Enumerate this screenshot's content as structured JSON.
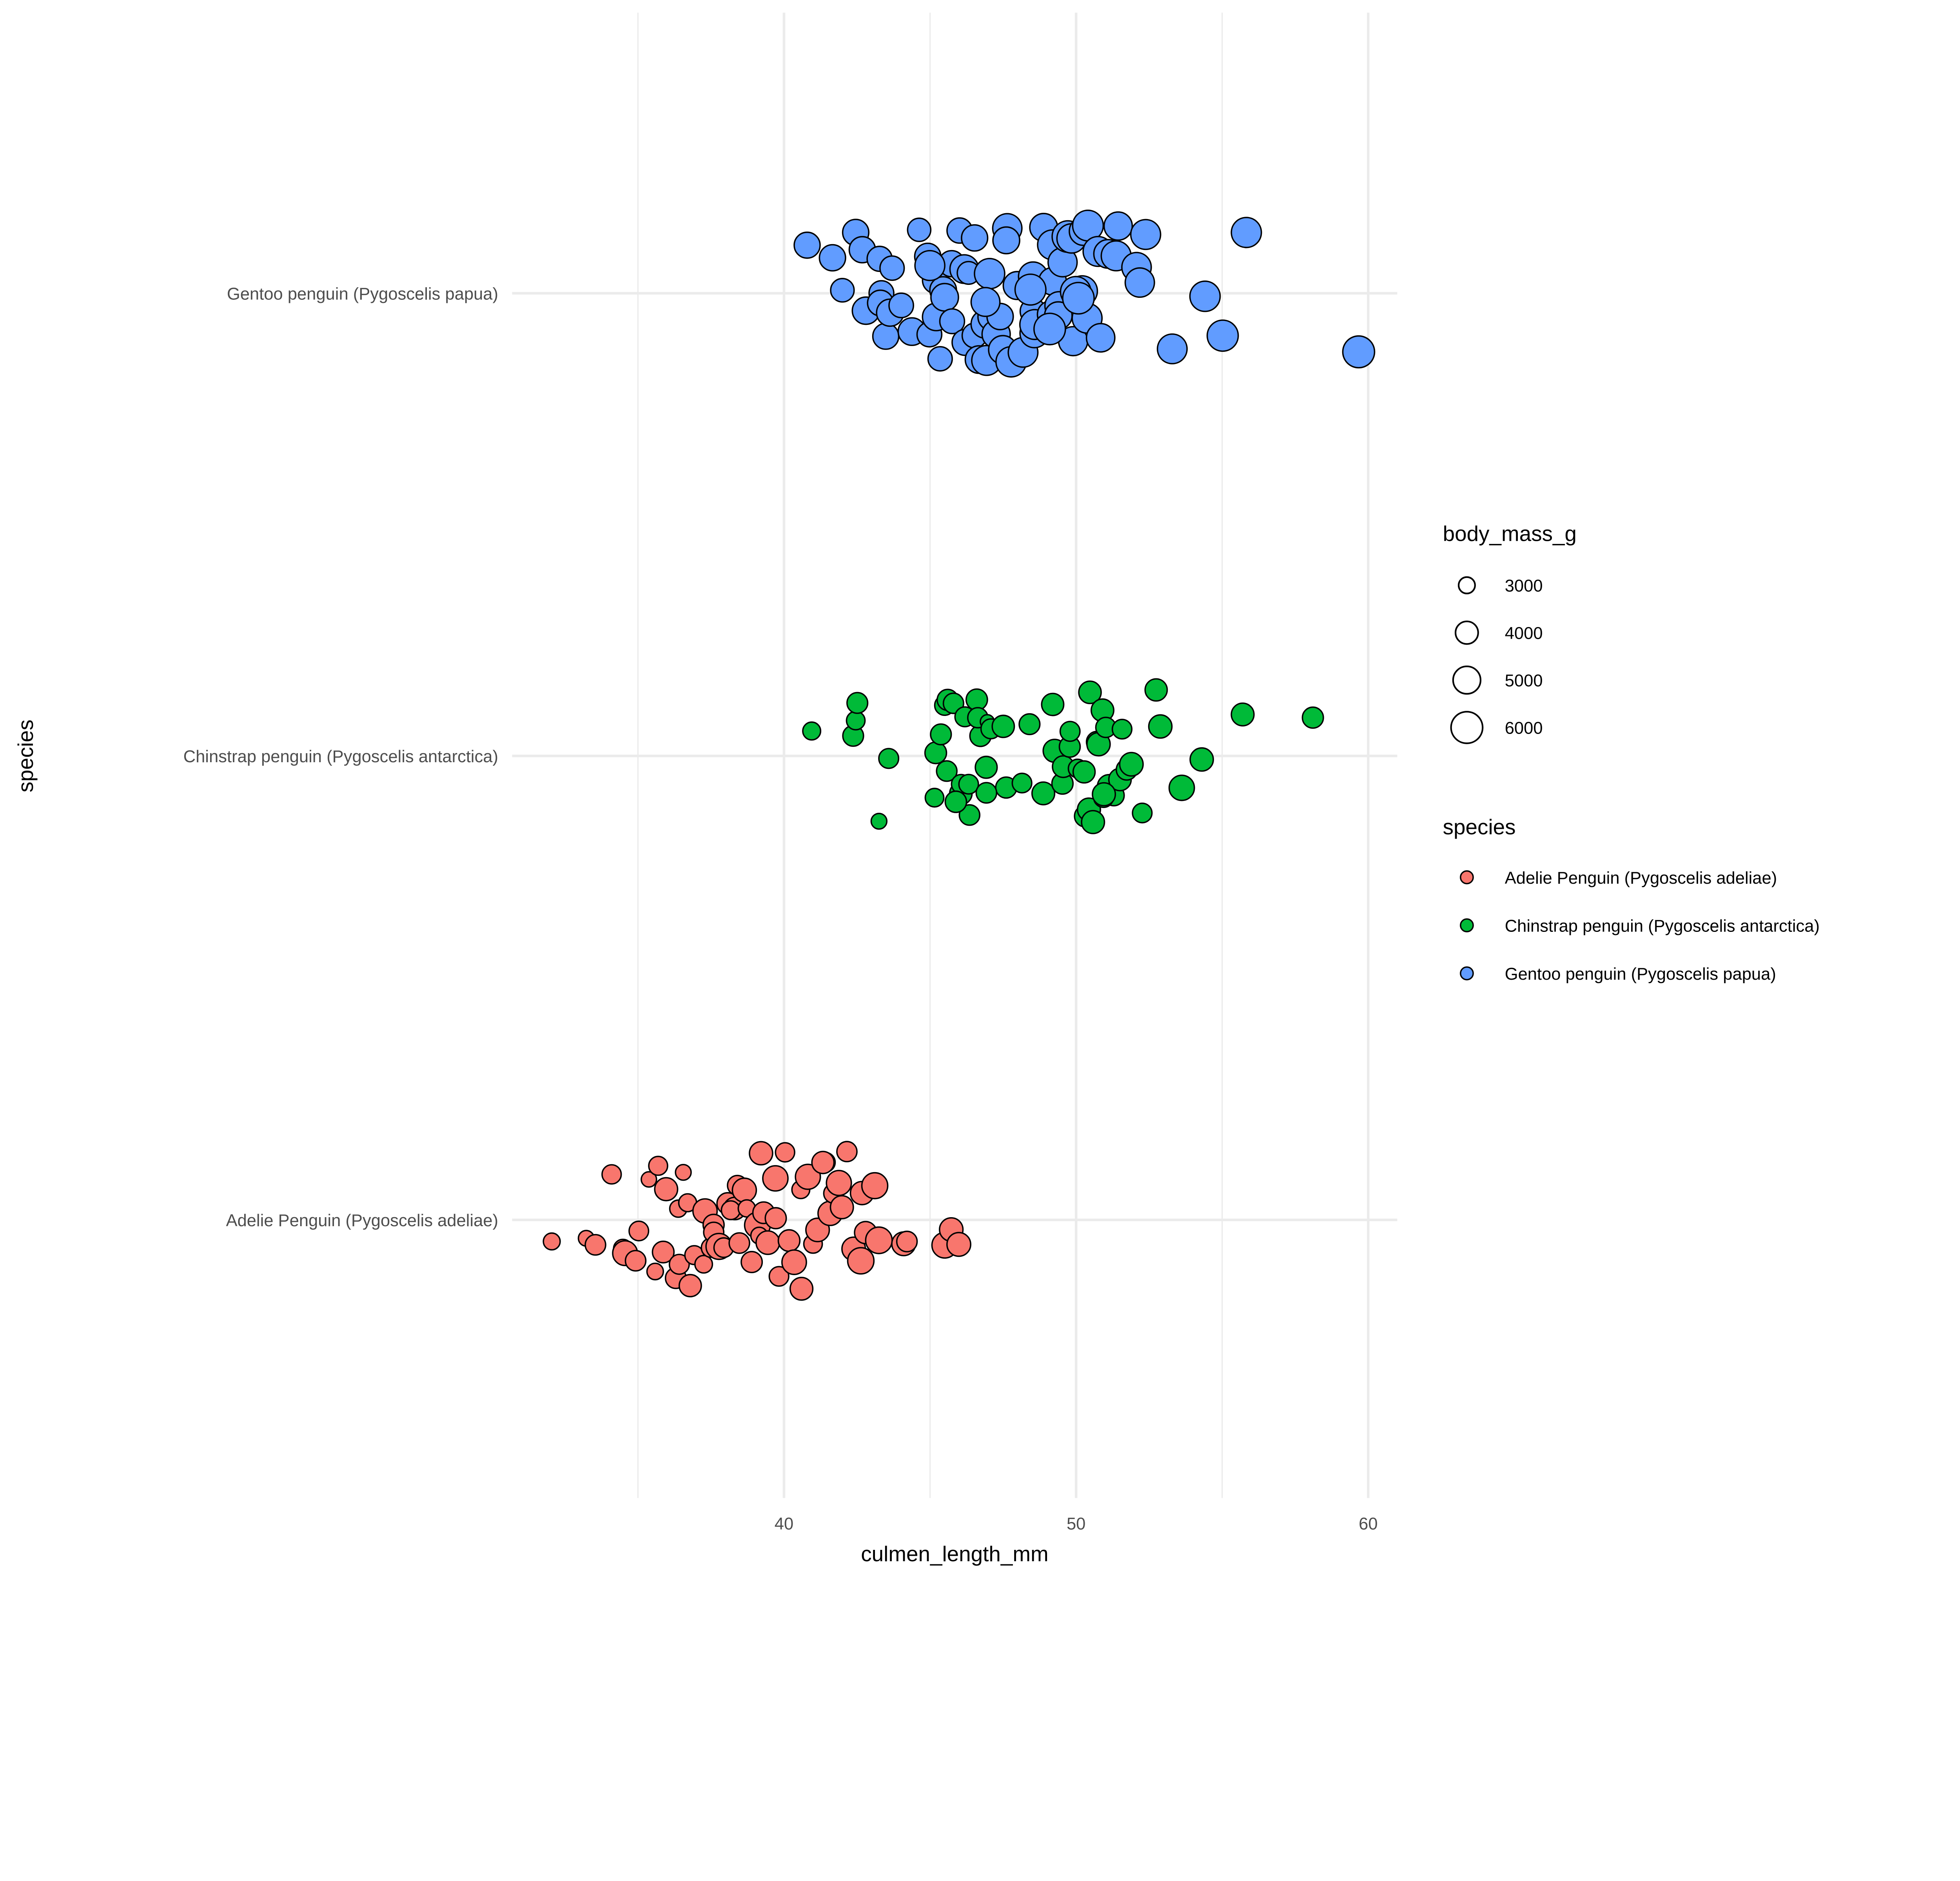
{
  "chart_data": {
    "type": "scatter",
    "title": "",
    "xlabel": "culmen_length_mm",
    "ylabel": "species",
    "xlim": [
      31.5,
      61
    ],
    "x_ticks": [
      "40",
      "50",
      "60"
    ],
    "x_tick_values": [
      40,
      50,
      60
    ],
    "x_minor_gridlines": [
      35,
      45,
      55
    ],
    "y_categories": [
      "Adelie Penguin (Pygoscelis adeliae)",
      "Chinstrap penguin (Pygoscelis antarctica)",
      "Gentoo penguin (Pygoscelis papua)"
    ],
    "grid": true,
    "point_jitter": "vertical",
    "size_legend": {
      "title": "body_mass_g",
      "values": [
        3000,
        4000,
        5000,
        6000
      ],
      "labels": [
        "3000",
        "4000",
        "5000",
        "6000"
      ]
    },
    "color_legend": {
      "title": "species",
      "placement": "right",
      "entries": [
        {
          "label": "Adelie Penguin (Pygoscelis adeliae)",
          "color": "#F8766D"
        },
        {
          "label": "Chinstrap penguin (Pygoscelis antarctica)",
          "color": "#00BA38"
        },
        {
          "label": "Gentoo penguin (Pygoscelis papua)",
          "color": "#619CFF"
        }
      ]
    },
    "series": [
      {
        "name": "Adelie Penguin (Pygoscelis adeliae)",
        "color": "#F8766D",
        "points": [
          [
            32.1,
            3050
          ],
          [
            33.1,
            2900
          ],
          [
            33.5,
            3600
          ],
          [
            34.0,
            3400
          ],
          [
            34.4,
            3325
          ],
          [
            34.6,
            4400
          ],
          [
            35.0,
            3600
          ],
          [
            35.1,
            3450
          ],
          [
            35.3,
            2850
          ],
          [
            35.5,
            3000
          ],
          [
            35.7,
            3350
          ],
          [
            35.9,
            3800
          ],
          [
            36.0,
            4050
          ],
          [
            36.2,
            3650
          ],
          [
            36.4,
            3100
          ],
          [
            36.5,
            3500
          ],
          [
            36.6,
            2900
          ],
          [
            36.7,
            3200
          ],
          [
            36.8,
            3900
          ],
          [
            37.0,
            3350
          ],
          [
            37.2,
            4300
          ],
          [
            37.3,
            3150
          ],
          [
            37.5,
            3700
          ],
          [
            37.6,
            3400
          ],
          [
            37.7,
            3550
          ],
          [
            37.8,
            4650
          ],
          [
            38.0,
            3450
          ],
          [
            38.1,
            3800
          ],
          [
            38.2,
            3950
          ],
          [
            38.3,
            3325
          ],
          [
            38.5,
            3500
          ],
          [
            38.6,
            3600
          ],
          [
            38.7,
            4250
          ],
          [
            38.8,
            3100
          ],
          [
            38.9,
            3700
          ],
          [
            39.0,
            4600
          ],
          [
            39.1,
            3050
          ],
          [
            39.2,
            4100
          ],
          [
            39.3,
            3800
          ],
          [
            39.5,
            4150
          ],
          [
            39.6,
            3700
          ],
          [
            39.7,
            4500
          ],
          [
            39.8,
            3450
          ],
          [
            40.0,
            3400
          ],
          [
            40.2,
            3800
          ],
          [
            40.3,
            4350
          ],
          [
            40.5,
            3200
          ],
          [
            40.6,
            4000
          ],
          [
            40.8,
            4450
          ],
          [
            40.9,
            3300
          ],
          [
            41.1,
            4150
          ],
          [
            41.3,
            3500
          ],
          [
            41.4,
            3900
          ],
          [
            41.5,
            4300
          ],
          [
            41.6,
            3450
          ],
          [
            41.8,
            4450
          ],
          [
            42.0,
            4050
          ],
          [
            42.2,
            3550
          ],
          [
            42.3,
            4150
          ],
          [
            42.5,
            4725
          ],
          [
            42.7,
            3900
          ],
          [
            42.8,
            4100
          ],
          [
            43.1,
            4650
          ],
          [
            43.2,
            4775
          ],
          [
            44.1,
            4200
          ],
          [
            44.1,
            3600
          ],
          [
            45.6,
            4600
          ],
          [
            45.8,
            4150
          ],
          [
            46.0,
            4200
          ]
        ]
      },
      {
        "name": "Chinstrap penguin (Pygoscelis antarctica)",
        "color": "#00BA38",
        "points": [
          [
            40.9,
            3200
          ],
          [
            42.4,
            3650
          ],
          [
            42.5,
            3300
          ],
          [
            42.5,
            3650
          ],
          [
            43.2,
            2900
          ],
          [
            43.5,
            3500
          ],
          [
            45.2,
            3300
          ],
          [
            45.2,
            3800
          ],
          [
            45.4,
            3525
          ],
          [
            45.5,
            3650
          ],
          [
            45.6,
            3600
          ],
          [
            45.7,
            3700
          ],
          [
            45.9,
            3575
          ],
          [
            46.0,
            3950
          ],
          [
            46.1,
            3400
          ],
          [
            46.2,
            3500
          ],
          [
            46.4,
            3600
          ],
          [
            46.5,
            3750
          ],
          [
            46.6,
            3725
          ],
          [
            46.7,
            3550
          ],
          [
            46.8,
            3850
          ],
          [
            46.9,
            2700
          ],
          [
            47.0,
            3500
          ],
          [
            47.5,
            3900
          ],
          [
            47.6,
            3700
          ],
          [
            48.1,
            3450
          ],
          [
            48.5,
            3650
          ],
          [
            49.0,
            4000
          ],
          [
            49.2,
            3900
          ],
          [
            49.3,
            4050
          ],
          [
            49.5,
            3725
          ],
          [
            49.6,
            3800
          ],
          [
            49.8,
            3675
          ],
          [
            50.1,
            3300
          ],
          [
            50.2,
            3775
          ],
          [
            50.3,
            3875
          ],
          [
            50.5,
            4050
          ],
          [
            50.5,
            3950
          ],
          [
            50.6,
            3700
          ],
          [
            50.7,
            4050
          ],
          [
            50.8,
            4100
          ],
          [
            50.8,
            3975
          ],
          [
            50.9,
            3550
          ],
          [
            51.0,
            4100
          ],
          [
            51.3,
            3650
          ],
          [
            51.4,
            3950
          ],
          [
            51.5,
            3450
          ],
          [
            51.7,
            3675
          ],
          [
            52.0,
            4150
          ],
          [
            52.2,
            3450
          ],
          [
            52.7,
            3900
          ],
          [
            52.8,
            4100
          ],
          [
            53.5,
            4500
          ],
          [
            54.2,
            4100
          ],
          [
            55.8,
            4000
          ],
          [
            58.0,
            3700
          ],
          [
            51.0,
            3500
          ],
          [
            49.7,
            3500
          ],
          [
            50.9,
            4050
          ],
          [
            46.4,
            3450
          ],
          [
            45.8,
            3750
          ],
          [
            47.0,
            3600
          ]
        ]
      },
      {
        "name": "Gentoo penguin (Pygoscelis papua)",
        "color": "#619CFF",
        "points": [
          [
            40.9,
            4650
          ],
          [
            41.7,
            4700
          ],
          [
            42.0,
            4150
          ],
          [
            42.5,
            4700
          ],
          [
            42.7,
            4950
          ],
          [
            42.8,
            4700
          ],
          [
            43.2,
            4450
          ],
          [
            43.3,
            4400
          ],
          [
            43.4,
            4600
          ],
          [
            43.5,
            4650
          ],
          [
            43.6,
            4900
          ],
          [
            43.8,
            4300
          ],
          [
            44.0,
            4350
          ],
          [
            44.4,
            5000
          ],
          [
            44.5,
            4100
          ],
          [
            44.9,
            4400
          ],
          [
            45.0,
            4700
          ],
          [
            45.1,
            5000
          ],
          [
            45.2,
            4750
          ],
          [
            45.3,
            4300
          ],
          [
            45.4,
            4800
          ],
          [
            45.5,
            5000
          ],
          [
            45.7,
            4400
          ],
          [
            45.8,
            4700
          ],
          [
            46.1,
            4500
          ],
          [
            46.2,
            4650
          ],
          [
            46.3,
            5250
          ],
          [
            46.4,
            4700
          ],
          [
            46.5,
            4400
          ],
          [
            46.6,
            5000
          ],
          [
            46.8,
            5150
          ],
          [
            46.9,
            5550
          ],
          [
            47.2,
            4925
          ],
          [
            47.3,
            5150
          ],
          [
            47.4,
            4725
          ],
          [
            47.5,
            5200
          ],
          [
            47.6,
            5400
          ],
          [
            47.7,
            4825
          ],
          [
            47.8,
            5650
          ],
          [
            48.1,
            5100
          ],
          [
            48.2,
            5500
          ],
          [
            48.4,
            4600
          ],
          [
            48.5,
            5300
          ],
          [
            48.6,
            5400
          ],
          [
            48.7,
            5550
          ],
          [
            48.8,
            5050
          ],
          [
            49.1,
            5000
          ],
          [
            49.2,
            4900
          ],
          [
            49.3,
            5550
          ],
          [
            49.4,
            5200
          ],
          [
            49.5,
            5000
          ],
          [
            49.6,
            5350
          ],
          [
            49.8,
            5950
          ],
          [
            49.9,
            5400
          ],
          [
            50.0,
            5350
          ],
          [
            50.1,
            5700
          ],
          [
            50.2,
            5200
          ],
          [
            50.4,
            5550
          ],
          [
            50.5,
            5750
          ],
          [
            50.7,
            5550
          ],
          [
            50.8,
            5200
          ],
          [
            51.1,
            5250
          ],
          [
            51.3,
            5550
          ],
          [
            51.5,
            5150
          ],
          [
            52.1,
            5450
          ],
          [
            52.2,
            5400
          ],
          [
            52.5,
            5550
          ],
          [
            53.4,
            5500
          ],
          [
            54.3,
            5650
          ],
          [
            55.1,
            5850
          ],
          [
            55.9,
            5600
          ],
          [
            59.6,
            6050
          ],
          [
            46.2,
            4000
          ],
          [
            45.1,
            5550
          ],
          [
            47.0,
            5650
          ],
          [
            50.0,
            5700
          ],
          [
            48.4,
            5800
          ],
          [
            50.2,
            5950
          ],
          [
            46.8,
            5300
          ],
          [
            49.0,
            5950
          ]
        ]
      }
    ]
  }
}
